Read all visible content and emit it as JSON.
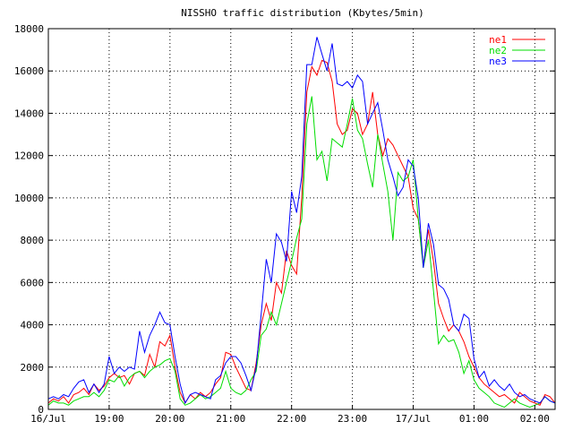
{
  "chart_data": {
    "type": "line",
    "title": "NISSHO traffic distribution (Kbytes/5min)",
    "xlabel": "",
    "ylabel": "",
    "ylim": [
      0,
      18000
    ],
    "yticks": [
      0,
      2000,
      4000,
      6000,
      8000,
      10000,
      12000,
      14000,
      16000,
      18000
    ],
    "xlim": [
      0,
      100
    ],
    "xticks": [
      {
        "x": 0,
        "label": "16/Jul"
      },
      {
        "x": 12,
        "label": "19:00"
      },
      {
        "x": 24,
        "label": "20:00"
      },
      {
        "x": 36,
        "label": "21:00"
      },
      {
        "x": 48,
        "label": "22:00"
      },
      {
        "x": 60,
        "label": "23:00"
      },
      {
        "x": 72,
        "label": "17/Jul"
      },
      {
        "x": 84,
        "label": "01:00"
      },
      {
        "x": 96,
        "label": "02:00"
      }
    ],
    "grid": true,
    "legend": "top-right",
    "x": [
      0,
      1,
      2,
      3,
      4,
      5,
      6,
      7,
      8,
      9,
      10,
      11,
      12,
      13,
      14,
      15,
      16,
      17,
      18,
      19,
      20,
      21,
      22,
      23,
      24,
      25,
      26,
      27,
      28,
      29,
      30,
      31,
      32,
      33,
      34,
      35,
      36,
      37,
      38,
      39,
      40,
      41,
      42,
      43,
      44,
      45,
      46,
      47,
      48,
      49,
      50,
      51,
      52,
      53,
      54,
      55,
      56,
      57,
      58,
      59,
      60,
      61,
      62,
      63,
      64,
      65,
      66,
      67,
      68,
      69,
      70,
      71,
      72,
      73,
      74,
      75,
      76,
      77,
      78,
      79,
      80,
      81,
      82,
      83,
      84,
      85,
      86,
      87,
      88,
      89,
      90,
      91,
      92,
      93,
      94,
      95,
      96,
      97,
      98,
      99,
      100
    ],
    "series": [
      {
        "name": "ne1",
        "color": "#ff0000",
        "values": [
          300,
          500,
          400,
          600,
          300,
          700,
          800,
          1000,
          700,
          1200,
          900,
          1100,
          1500,
          1700,
          1500,
          1600,
          1200,
          1700,
          1800,
          1600,
          2600,
          2000,
          3200,
          3000,
          3500,
          2000,
          800,
          300,
          700,
          500,
          800,
          600,
          800,
          1200,
          1500,
          2700,
          2600,
          2000,
          1500,
          1000,
          900,
          2200,
          4000,
          5000,
          4200,
          6000,
          5500,
          7500,
          6800,
          6400,
          10000,
          15000,
          16200,
          15800,
          16500,
          16400,
          15500,
          13500,
          13000,
          13200,
          14200,
          14000,
          13000,
          13500,
          15000,
          13000,
          12000,
          12800,
          12500,
          12000,
          11500,
          11000,
          9500,
          9000,
          6800,
          8500,
          7000,
          5000,
          4300,
          3700,
          4000,
          3700,
          3200,
          2500,
          2000,
          1500,
          1200,
          1000,
          800,
          600,
          700,
          500,
          300,
          800,
          600,
          400,
          300,
          200,
          700,
          600,
          300
        ]
      },
      {
        "name": "ne2",
        "color": "#00dd00",
        "values": [
          200,
          400,
          300,
          300,
          200,
          400,
          500,
          600,
          600,
          800,
          600,
          900,
          1400,
          1300,
          1600,
          1100,
          1500,
          1700,
          1800,
          1500,
          1800,
          2000,
          2100,
          2300,
          2400,
          1800,
          500,
          200,
          300,
          500,
          700,
          500,
          600,
          800,
          1000,
          1800,
          1000,
          800,
          700,
          900,
          1400,
          1800,
          3500,
          3800,
          4600,
          4000,
          5000,
          6000,
          7000,
          8100,
          9000,
          13500,
          14800,
          11800,
          12200,
          10800,
          12800,
          12600,
          12400,
          13500,
          14700,
          13200,
          12800,
          11600,
          10500,
          13000,
          11600,
          10300,
          8000,
          11200,
          10800,
          11000,
          11800,
          9000,
          6700,
          8000,
          5600,
          3100,
          3500,
          3200,
          3300,
          2700,
          1700,
          2300,
          1400,
          1000,
          800,
          600,
          300,
          200,
          100,
          300,
          500,
          300,
          200,
          100,
          200,
          300,
          600,
          400,
          300
        ]
      },
      {
        "name": "ne3",
        "color": "#0000ff",
        "values": [
          500,
          600,
          500,
          700,
          600,
          1000,
          1300,
          1400,
          800,
          1200,
          800,
          1200,
          2500,
          1700,
          2000,
          1800,
          2000,
          1900,
          3700,
          2700,
          3500,
          4000,
          4600,
          4100,
          4000,
          2500,
          1200,
          300,
          700,
          800,
          700,
          600,
          500,
          1400,
          1600,
          2200,
          2500,
          2500,
          2200,
          1600,
          900,
          2000,
          4500,
          7100,
          6000,
          8300,
          7900,
          7000,
          10300,
          9300,
          11000,
          16300,
          16300,
          17600,
          16800,
          16000,
          17300,
          15400,
          15300,
          15500,
          15200,
          15800,
          15500,
          13500,
          14000,
          14500,
          13200,
          11800,
          11000,
          10100,
          10500,
          11800,
          11500,
          10000,
          6700,
          8800,
          7800,
          5900,
          5700,
          5200,
          4000,
          3700,
          4500,
          4300,
          2400,
          1500,
          1800,
          1100,
          1400,
          1100,
          900,
          1200,
          800,
          600,
          700,
          500,
          400,
          300,
          600,
          400,
          300
        ]
      }
    ]
  }
}
